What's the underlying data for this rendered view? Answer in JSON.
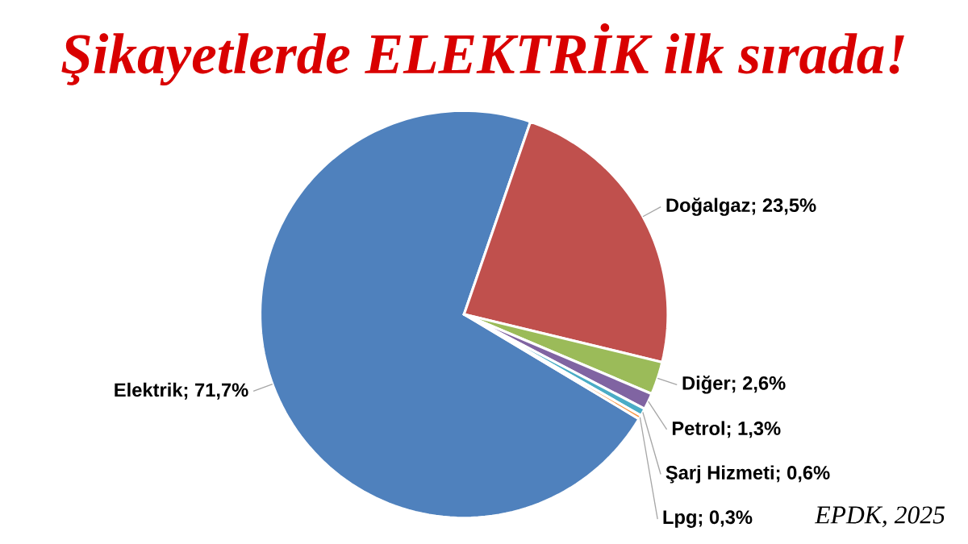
{
  "chart_data": {
    "type": "pie",
    "title": "Şikayetlerde ELEKTRİK ilk sırada!",
    "categories": [
      "Elektrik",
      "Doğalgaz",
      "Diğer",
      "Petrol",
      "Şarj Hizmeti",
      "Lpg"
    ],
    "values": [
      71.7,
      23.5,
      2.6,
      1.3,
      0.6,
      0.3
    ],
    "colors": [
      "#4f81bd",
      "#c0504d",
      "#9bbb59",
      "#8064a2",
      "#4bacc6",
      "#f79646"
    ],
    "value_labels": [
      "; 71,7%",
      "; 23,5%",
      "; 2,6%",
      "; 1,3%",
      "; 0,6%",
      "; 0,3%"
    ],
    "annotations": [
      "EPDK, 2025"
    ]
  }
}
